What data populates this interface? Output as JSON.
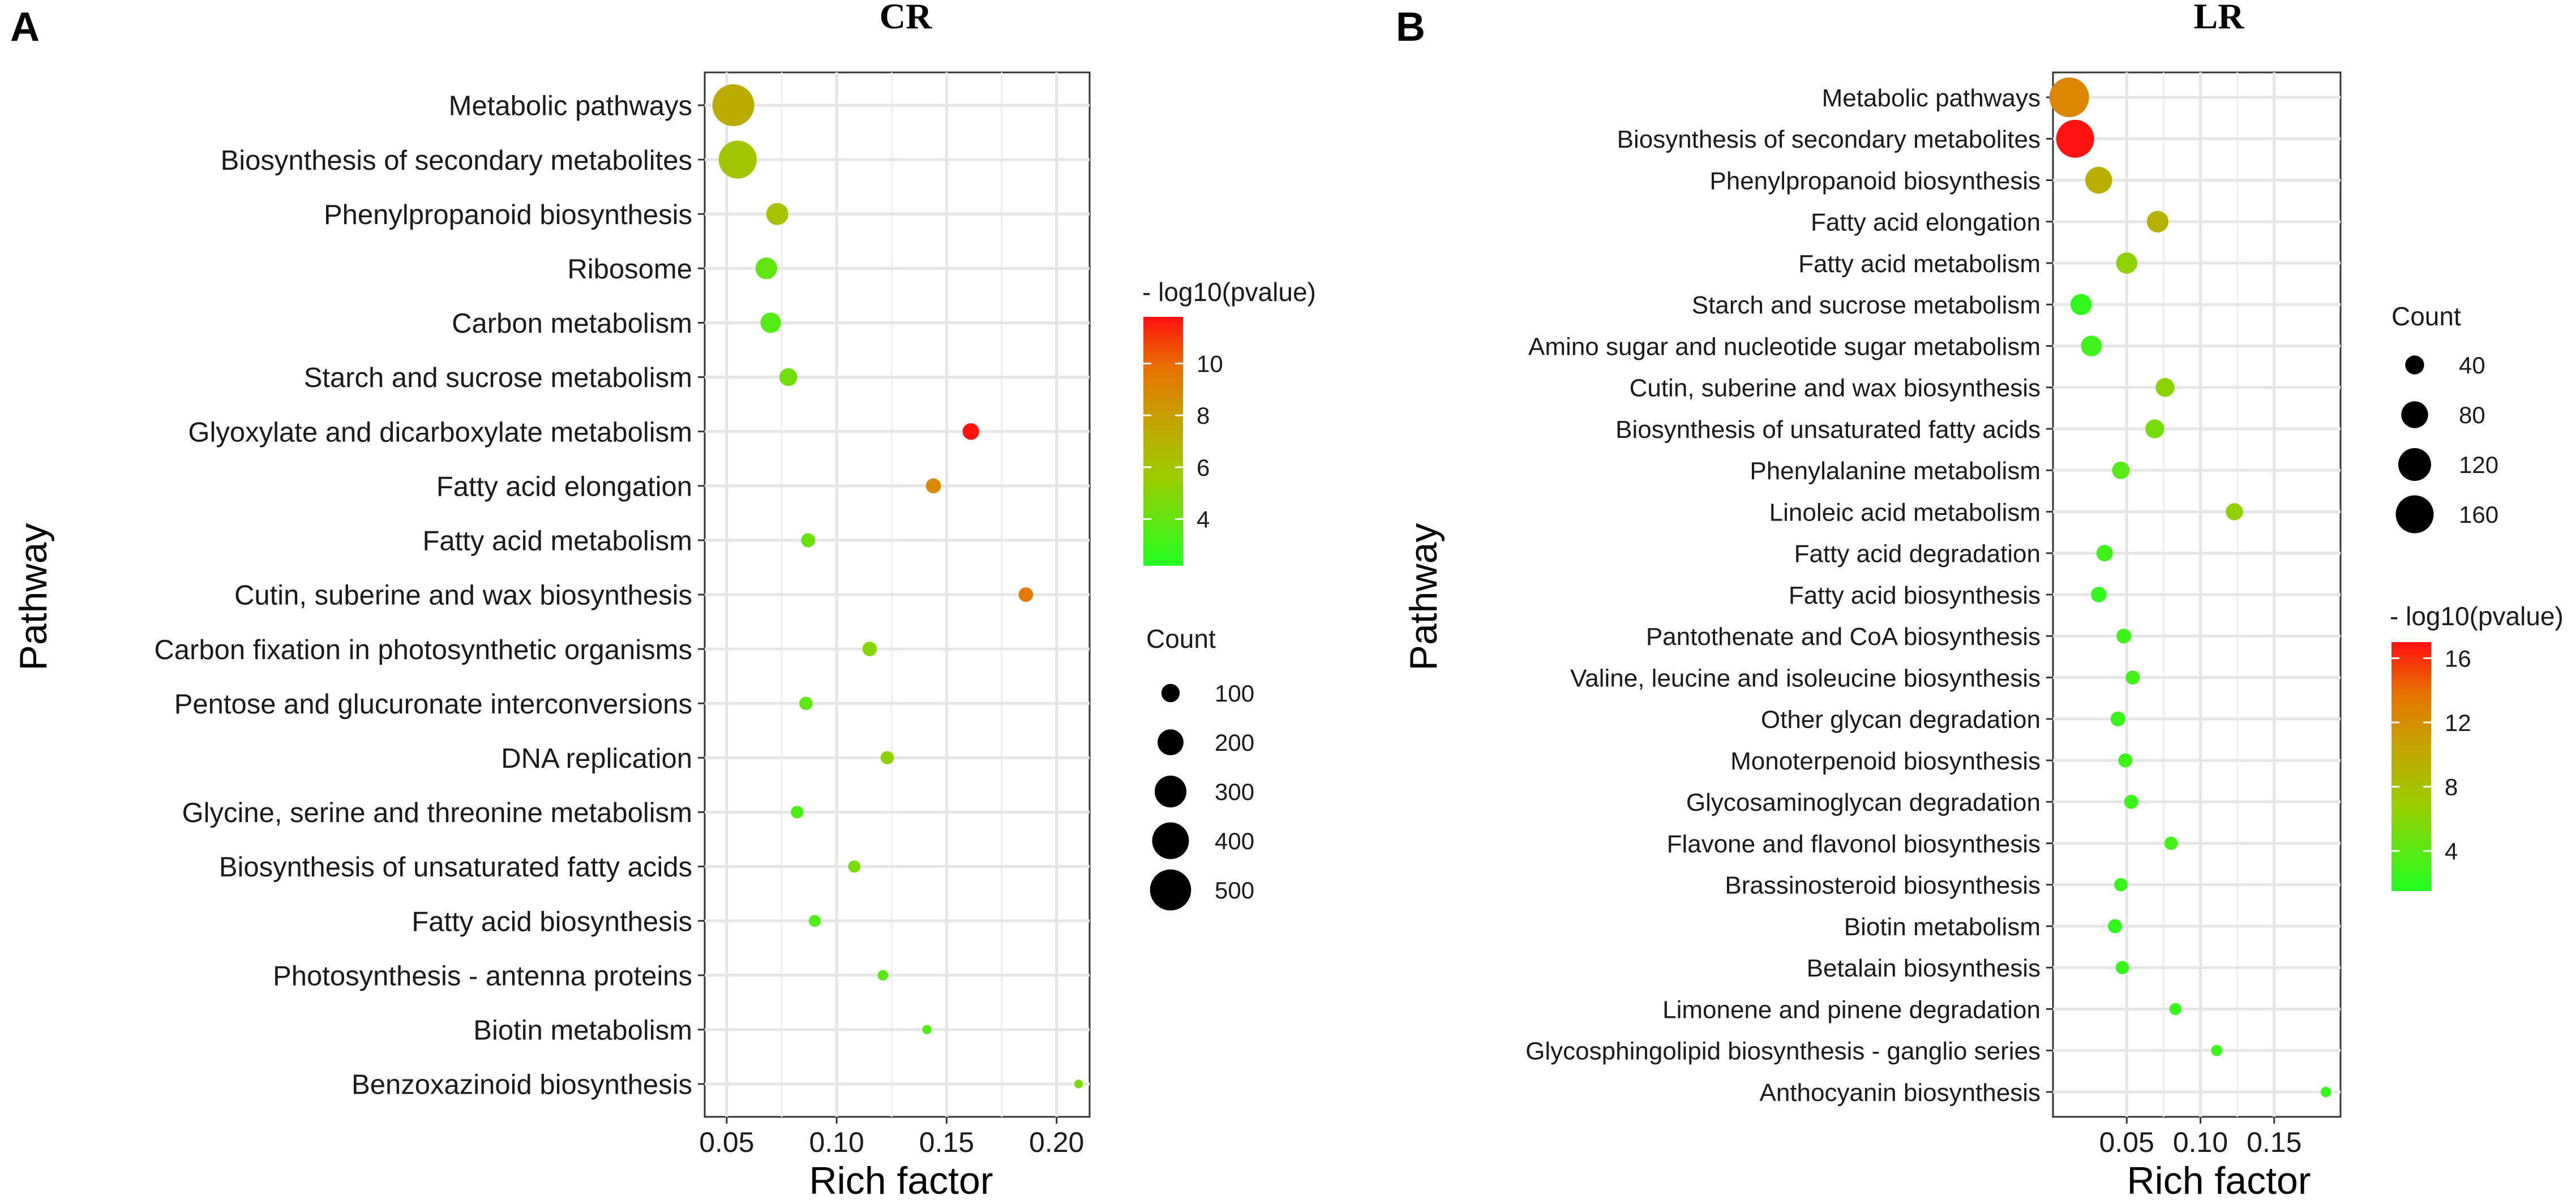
{
  "chart_data": [
    {
      "type": "scatter",
      "panel_letter": "A",
      "title": "CR",
      "xlabel": "Rich factor",
      "ylabel": "Pathway",
      "xlim": [
        0.04,
        0.215
      ],
      "xticks": [
        0.05,
        0.1,
        0.15,
        0.2
      ],
      "xtick_labels": [
        "0.05",
        "0.10",
        "0.15",
        "0.20"
      ],
      "grid": true,
      "color_legend": {
        "title": "- log10(pvalue)",
        "min": 2.2,
        "max": 11.8,
        "ticks": [
          4,
          6,
          8,
          10
        ],
        "tick_labels": [
          "4",
          "6",
          "8",
          "10"
        ]
      },
      "size_legend": {
        "title": "Count",
        "values": [
          100,
          200,
          300,
          400,
          500
        ],
        "labels": [
          "100",
          "200",
          "300",
          "400",
          "500"
        ],
        "max": 520
      },
      "pathways": [
        {
          "name": "Metabolic pathways",
          "x": 0.053,
          "count": 520,
          "pvalue": 7.3
        },
        {
          "name": "Biosynthesis of secondary metabolites",
          "x": 0.055,
          "count": 430,
          "pvalue": 6.0
        },
        {
          "name": "Phenylpropanoid biosynthesis",
          "x": 0.073,
          "count": 145,
          "pvalue": 6.2
        },
        {
          "name": "Ribosome",
          "x": 0.068,
          "count": 140,
          "pvalue": 4.0
        },
        {
          "name": "Carbon metabolism",
          "x": 0.07,
          "count": 125,
          "pvalue": 3.6
        },
        {
          "name": "Starch and sucrose metabolism",
          "x": 0.078,
          "count": 95,
          "pvalue": 4.4
        },
        {
          "name": "Glyoxylate and dicarboxylate metabolism",
          "x": 0.161,
          "count": 82,
          "pvalue": 11.7
        },
        {
          "name": "Fatty acid elongation",
          "x": 0.144,
          "count": 67,
          "pvalue": 8.9
        },
        {
          "name": "Fatty acid metabolism",
          "x": 0.087,
          "count": 58,
          "pvalue": 4.2
        },
        {
          "name": "Cutin, suberine and wax biosynthesis",
          "x": 0.186,
          "count": 62,
          "pvalue": 9.6
        },
        {
          "name": "Carbon fixation in photosynthetic organisms",
          "x": 0.115,
          "count": 62,
          "pvalue": 5.0
        },
        {
          "name": "Pentose and glucuronate interconversions",
          "x": 0.086,
          "count": 52,
          "pvalue": 3.8
        },
        {
          "name": "DNA replication",
          "x": 0.123,
          "count": 52,
          "pvalue": 5.2
        },
        {
          "name": "Glycine, serine and threonine metabolism",
          "x": 0.082,
          "count": 47,
          "pvalue": 3.4
        },
        {
          "name": "Biosynthesis of unsaturated fatty acids",
          "x": 0.108,
          "count": 44,
          "pvalue": 4.7
        },
        {
          "name": "Fatty acid biosynthesis",
          "x": 0.09,
          "count": 42,
          "pvalue": 3.4
        },
        {
          "name": "Photosynthesis -  antenna proteins",
          "x": 0.121,
          "count": 33,
          "pvalue": 3.7
        },
        {
          "name": "Biotin metabolism",
          "x": 0.141,
          "count": 25,
          "pvalue": 3.5
        },
        {
          "name": "Benzoxazinoid biosynthesis",
          "x": 0.21,
          "count": 22,
          "pvalue": 4.8
        }
      ]
    },
    {
      "type": "scatter",
      "panel_letter": "B",
      "title": "LR",
      "xlabel": "Rich factor",
      "ylabel": "Pathway",
      "xlim": [
        0.0,
        0.195
      ],
      "xticks": [
        0.05,
        0.1,
        0.15
      ],
      "xtick_labels": [
        "0.05",
        "0.10",
        "0.15"
      ],
      "grid": true,
      "color_legend": {
        "title": "- log10(pvalue)",
        "min": 1.5,
        "max": 17,
        "ticks": [
          4,
          8,
          12,
          16
        ],
        "tick_labels": [
          "4",
          "8",
          "12",
          "16"
        ]
      },
      "size_legend": {
        "title": "Count",
        "values": [
          40,
          80,
          120,
          160
        ],
        "labels": [
          "40",
          "80",
          "120",
          "160"
        ],
        "max": 175
      },
      "pathways": [
        {
          "name": "Metabolic pathways",
          "x": 0.011,
          "count": 175,
          "pvalue": 12.5
        },
        {
          "name": "Biosynthesis of secondary metabolites",
          "x": 0.015,
          "count": 160,
          "pvalue": 16.9
        },
        {
          "name": "Phenylpropanoid biosynthesis",
          "x": 0.031,
          "count": 80,
          "pvalue": 9.5
        },
        {
          "name": "Fatty acid elongation",
          "x": 0.071,
          "count": 52,
          "pvalue": 9.2
        },
        {
          "name": "Fatty acid metabolism",
          "x": 0.05,
          "count": 50,
          "pvalue": 6.4
        },
        {
          "name": "Starch and sucrose metabolism",
          "x": 0.019,
          "count": 50,
          "pvalue": 2.2
        },
        {
          "name": "Amino sugar and nucleotide sugar metabolism",
          "x": 0.026,
          "count": 48,
          "pvalue": 2.8
        },
        {
          "name": "Cutin, suberine and wax biosynthesis",
          "x": 0.076,
          "count": 40,
          "pvalue": 6.2
        },
        {
          "name": "Biosynthesis of unsaturated fatty acids",
          "x": 0.069,
          "count": 40,
          "pvalue": 5.2
        },
        {
          "name": "Phenylalanine metabolism",
          "x": 0.046,
          "count": 34,
          "pvalue": 3.8
        },
        {
          "name": "Linoleic acid metabolism",
          "x": 0.123,
          "count": 33,
          "pvalue": 6.6
        },
        {
          "name": "Fatty acid degradation",
          "x": 0.035,
          "count": 30,
          "pvalue": 2.8
        },
        {
          "name": "Fatty acid biosynthesis",
          "x": 0.031,
          "count": 27,
          "pvalue": 2.3
        },
        {
          "name": "Pantothenate and CoA biosynthesis",
          "x": 0.048,
          "count": 24,
          "pvalue": 2.8
        },
        {
          "name": "Valine, leucine and isoleucine biosynthesis",
          "x": 0.054,
          "count": 22,
          "pvalue": 3.0
        },
        {
          "name": "Other glycan degradation",
          "x": 0.044,
          "count": 24,
          "pvalue": 2.5
        },
        {
          "name": "Monoterpenoid biosynthesis",
          "x": 0.049,
          "count": 22,
          "pvalue": 2.8
        },
        {
          "name": "Glycosaminoglycan degradation",
          "x": 0.053,
          "count": 22,
          "pvalue": 2.6
        },
        {
          "name": "Flavone and flavonol biosynthesis",
          "x": 0.08,
          "count": 20,
          "pvalue": 3.0
        },
        {
          "name": "Brassinosteroid biosynthesis",
          "x": 0.046,
          "count": 20,
          "pvalue": 2.5
        },
        {
          "name": "Biotin metabolism",
          "x": 0.042,
          "count": 22,
          "pvalue": 2.2
        },
        {
          "name": "Betalain biosynthesis",
          "x": 0.047,
          "count": 20,
          "pvalue": 2.4
        },
        {
          "name": "Limonene and pinene degradation",
          "x": 0.083,
          "count": 16,
          "pvalue": 2.5
        },
        {
          "name": "Glycosphingolipid biosynthesis -  ganglio series",
          "x": 0.111,
          "count": 14,
          "pvalue": 2.6
        },
        {
          "name": "Anthocyanin biosynthesis",
          "x": 0.185,
          "count": 12,
          "pvalue": 2.4
        }
      ]
    }
  ]
}
